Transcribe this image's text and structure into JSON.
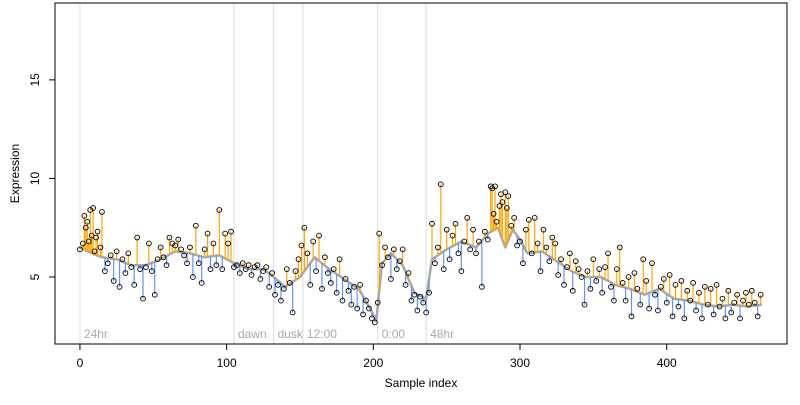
{
  "chart_data": {
    "type": "scatter",
    "title": "",
    "xlabel": "Sample index",
    "ylabel": "Expression",
    "xlim": [
      -17,
      482
    ],
    "ylim": [
      1.6,
      18.9
    ],
    "xticks": [
      0,
      100,
      200,
      300,
      400
    ],
    "yticks": [
      5,
      10,
      15
    ],
    "grid": false,
    "legend": "none",
    "colors": {
      "above_fit": "#FFA500",
      "below_fit": "#6495ED",
      "fit_line": "#A9A9A9",
      "points_stroke": "#000000",
      "section_line": "#DDDDDD",
      "section_label": "#A9A9A9"
    },
    "sections": [
      {
        "label": "24hr",
        "start": 0
      },
      {
        "label": "dawn",
        "start": 105
      },
      {
        "label": "dusk",
        "start": 132
      },
      {
        "label": "12:00",
        "start": 152
      },
      {
        "label": "0:00",
        "start": 203
      },
      {
        "label": "48hr",
        "start": 236
      }
    ],
    "trend_knots": [
      [
        0,
        6.5
      ],
      [
        8,
        6.2
      ],
      [
        15,
        6.0
      ],
      [
        25,
        5.9
      ],
      [
        35,
        5.6
      ],
      [
        45,
        5.6
      ],
      [
        55,
        5.9
      ],
      [
        65,
        6.3
      ],
      [
        75,
        6.2
      ],
      [
        85,
        6.0
      ],
      [
        95,
        6.1
      ],
      [
        105,
        5.7
      ],
      [
        115,
        5.4
      ],
      [
        125,
        5.4
      ],
      [
        132,
        5.0
      ],
      [
        140,
        4.5
      ],
      [
        150,
        5.0
      ],
      [
        160,
        6.0
      ],
      [
        170,
        5.4
      ],
      [
        180,
        4.9
      ],
      [
        190,
        4.4
      ],
      [
        197,
        3.5
      ],
      [
        202,
        2.8
      ],
      [
        206,
        5.7
      ],
      [
        212,
        6.2
      ],
      [
        220,
        5.6
      ],
      [
        228,
        4.2
      ],
      [
        236,
        3.9
      ],
      [
        240,
        5.9
      ],
      [
        250,
        6.4
      ],
      [
        260,
        6.8
      ],
      [
        270,
        6.5
      ],
      [
        278,
        7.2
      ],
      [
        285,
        7.5
      ],
      [
        290,
        6.5
      ],
      [
        295,
        7.4
      ],
      [
        300,
        6.9
      ],
      [
        305,
        6.2
      ],
      [
        315,
        6.3
      ],
      [
        325,
        5.8
      ],
      [
        335,
        5.3
      ],
      [
        345,
        5.0
      ],
      [
        355,
        5.0
      ],
      [
        365,
        4.6
      ],
      [
        375,
        4.4
      ],
      [
        385,
        4.1
      ],
      [
        395,
        4.4
      ],
      [
        405,
        3.9
      ],
      [
        415,
        3.8
      ],
      [
        425,
        3.6
      ],
      [
        435,
        3.5
      ],
      [
        445,
        3.6
      ],
      [
        455,
        3.5
      ],
      [
        465,
        3.6
      ]
    ],
    "points": [
      [
        0,
        6.4
      ],
      [
        2,
        6.7
      ],
      [
        3,
        8.1
      ],
      [
        4,
        7.5
      ],
      [
        5,
        7.8
      ],
      [
        6,
        6.8
      ],
      [
        7,
        8.4
      ],
      [
        8,
        7.1
      ],
      [
        9,
        8.5
      ],
      [
        10,
        6.3
      ],
      [
        11,
        7.0
      ],
      [
        12,
        7.3
      ],
      [
        14,
        6.5
      ],
      [
        15,
        8.3
      ],
      [
        17,
        5.3
      ],
      [
        19,
        5.7
      ],
      [
        21,
        6.1
      ],
      [
        23,
        4.8
      ],
      [
        25,
        6.3
      ],
      [
        27,
        4.5
      ],
      [
        29,
        5.9
      ],
      [
        31,
        5.2
      ],
      [
        33,
        6.2
      ],
      [
        35,
        5.5
      ],
      [
        37,
        4.6
      ],
      [
        39,
        7.0
      ],
      [
        41,
        5.4
      ],
      [
        43,
        3.9
      ],
      [
        45,
        5.5
      ],
      [
        47,
        6.7
      ],
      [
        49,
        5.3
      ],
      [
        51,
        4.1
      ],
      [
        53,
        5.9
      ],
      [
        55,
        6.5
      ],
      [
        57,
        6.0
      ],
      [
        59,
        5.6
      ],
      [
        61,
        7.0
      ],
      [
        63,
        6.7
      ],
      [
        65,
        6.6
      ],
      [
        67,
        6.9
      ],
      [
        69,
        6.4
      ],
      [
        71,
        6.1
      ],
      [
        73,
        5.7
      ],
      [
        75,
        6.5
      ],
      [
        77,
        5.0
      ],
      [
        79,
        7.6
      ],
      [
        81,
        5.7
      ],
      [
        83,
        4.7
      ],
      [
        85,
        6.4
      ],
      [
        87,
        7.2
      ],
      [
        89,
        5.4
      ],
      [
        91,
        6.7
      ],
      [
        93,
        5.6
      ],
      [
        95,
        8.4
      ],
      [
        97,
        5.4
      ],
      [
        99,
        7.2
      ],
      [
        101,
        6.7
      ],
      [
        103,
        7.3
      ],
      [
        105,
        5.5
      ],
      [
        107,
        5.6
      ],
      [
        109,
        5.2
      ],
      [
        111,
        5.7
      ],
      [
        113,
        5.4
      ],
      [
        115,
        5.6
      ],
      [
        117,
        5.1
      ],
      [
        119,
        5.5
      ],
      [
        121,
        5.6
      ],
      [
        123,
        4.9
      ],
      [
        125,
        5.3
      ],
      [
        127,
        5.5
      ],
      [
        129,
        4.5
      ],
      [
        131,
        5.2
      ],
      [
        133,
        4.1
      ],
      [
        135,
        4.6
      ],
      [
        137,
        3.8
      ],
      [
        139,
        4.4
      ],
      [
        141,
        5.4
      ],
      [
        143,
        4.7
      ],
      [
        145,
        3.2
      ],
      [
        147,
        5.3
      ],
      [
        149,
        5.9
      ],
      [
        151,
        6.6
      ],
      [
        153,
        7.5
      ],
      [
        155,
        6.2
      ],
      [
        157,
        4.6
      ],
      [
        159,
        6.8
      ],
      [
        161,
        5.3
      ],
      [
        163,
        7.1
      ],
      [
        165,
        4.4
      ],
      [
        167,
        6.0
      ],
      [
        169,
        5.2
      ],
      [
        171,
        4.7
      ],
      [
        173,
        5.4
      ],
      [
        175,
        4.2
      ],
      [
        177,
        5.9
      ],
      [
        179,
        3.8
      ],
      [
        181,
        4.9
      ],
      [
        183,
        4.3
      ],
      [
        185,
        3.6
      ],
      [
        187,
        4.5
      ],
      [
        189,
        3.4
      ],
      [
        191,
        4.6
      ],
      [
        193,
        3.1
      ],
      [
        195,
        3.8
      ],
      [
        197,
        3.4
      ],
      [
        199,
        2.9
      ],
      [
        201,
        2.7
      ],
      [
        203,
        3.7
      ],
      [
        204,
        7.2
      ],
      [
        206,
        5.6
      ],
      [
        208,
        6.5
      ],
      [
        210,
        6.0
      ],
      [
        212,
        4.9
      ],
      [
        214,
        6.4
      ],
      [
        216,
        5.4
      ],
      [
        218,
        5.8
      ],
      [
        220,
        6.4
      ],
      [
        222,
        4.6
      ],
      [
        224,
        5.2
      ],
      [
        226,
        3.8
      ],
      [
        228,
        4.1
      ],
      [
        230,
        3.3
      ],
      [
        232,
        4.0
      ],
      [
        234,
        3.7
      ],
      [
        236,
        3.2
      ],
      [
        238,
        4.2
      ],
      [
        240,
        7.7
      ],
      [
        242,
        5.7
      ],
      [
        244,
        6.5
      ],
      [
        246,
        9.7
      ],
      [
        248,
        5.4
      ],
      [
        250,
        7.4
      ],
      [
        252,
        5.9
      ],
      [
        254,
        7.1
      ],
      [
        256,
        7.7
      ],
      [
        258,
        6.2
      ],
      [
        260,
        5.3
      ],
      [
        262,
        6.8
      ],
      [
        264,
        8.0
      ],
      [
        266,
        6.4
      ],
      [
        268,
        7.4
      ],
      [
        270,
        6.2
      ],
      [
        272,
        6.8
      ],
      [
        274,
        4.5
      ],
      [
        276,
        7.3
      ],
      [
        278,
        6.9
      ],
      [
        280,
        9.6
      ],
      [
        281,
        9.5
      ],
      [
        282,
        8.2
      ],
      [
        283,
        9.6
      ],
      [
        284,
        7.8
      ],
      [
        286,
        8.6
      ],
      [
        287,
        9.2
      ],
      [
        288,
        8.8
      ],
      [
        290,
        9.3
      ],
      [
        291,
        8.5
      ],
      [
        292,
        9.1
      ],
      [
        294,
        7.6
      ],
      [
        296,
        8.0
      ],
      [
        298,
        6.6
      ],
      [
        300,
        6.8
      ],
      [
        302,
        5.7
      ],
      [
        304,
        7.4
      ],
      [
        306,
        7.9
      ],
      [
        308,
        6.2
      ],
      [
        310,
        8.0
      ],
      [
        312,
        6.7
      ],
      [
        314,
        5.3
      ],
      [
        316,
        7.4
      ],
      [
        318,
        6.5
      ],
      [
        320,
        5.8
      ],
      [
        322,
        7.0
      ],
      [
        324,
        6.7
      ],
      [
        326,
        5.1
      ],
      [
        328,
        5.9
      ],
      [
        330,
        4.6
      ],
      [
        332,
        5.5
      ],
      [
        334,
        6.2
      ],
      [
        336,
        4.3
      ],
      [
        338,
        5.8
      ],
      [
        340,
        5.4
      ],
      [
        342,
        5.0
      ],
      [
        344,
        3.6
      ],
      [
        346,
        5.3
      ],
      [
        348,
        4.4
      ],
      [
        350,
        5.9
      ],
      [
        352,
        4.8
      ],
      [
        354,
        5.4
      ],
      [
        356,
        4.2
      ],
      [
        358,
        5.5
      ],
      [
        360,
        6.2
      ],
      [
        362,
        4.5
      ],
      [
        364,
        3.8
      ],
      [
        366,
        5.4
      ],
      [
        368,
        6.5
      ],
      [
        370,
        4.7
      ],
      [
        372,
        3.8
      ],
      [
        374,
        5.0
      ],
      [
        376,
        3.0
      ],
      [
        378,
        5.2
      ],
      [
        380,
        4.4
      ],
      [
        382,
        3.6
      ],
      [
        384,
        5.9
      ],
      [
        386,
        4.8
      ],
      [
        388,
        3.4
      ],
      [
        390,
        5.7
      ],
      [
        392,
        4.1
      ],
      [
        394,
        3.3
      ],
      [
        396,
        4.5
      ],
      [
        398,
        4.9
      ],
      [
        400,
        3.7
      ],
      [
        402,
        5.1
      ],
      [
        404,
        3.0
      ],
      [
        406,
        4.6
      ],
      [
        408,
        3.5
      ],
      [
        410,
        4.8
      ],
      [
        412,
        2.9
      ],
      [
        414,
        4.3
      ],
      [
        416,
        3.8
      ],
      [
        418,
        4.7
      ],
      [
        420,
        3.3
      ],
      [
        422,
        4.2
      ],
      [
        424,
        2.9
      ],
      [
        426,
        4.5
      ],
      [
        428,
        3.6
      ],
      [
        430,
        4.4
      ],
      [
        432,
        3.1
      ],
      [
        434,
        4.6
      ],
      [
        436,
        3.5
      ],
      [
        438,
        3.9
      ],
      [
        440,
        2.9
      ],
      [
        442,
        4.3
      ],
      [
        444,
        3.2
      ],
      [
        446,
        3.7
      ],
      [
        448,
        4.1
      ],
      [
        450,
        2.9
      ],
      [
        452,
        3.8
      ],
      [
        454,
        4.2
      ],
      [
        456,
        3.6
      ],
      [
        458,
        4.3
      ],
      [
        460,
        3.7
      ],
      [
        462,
        3.0
      ],
      [
        464,
        4.1
      ]
    ]
  }
}
